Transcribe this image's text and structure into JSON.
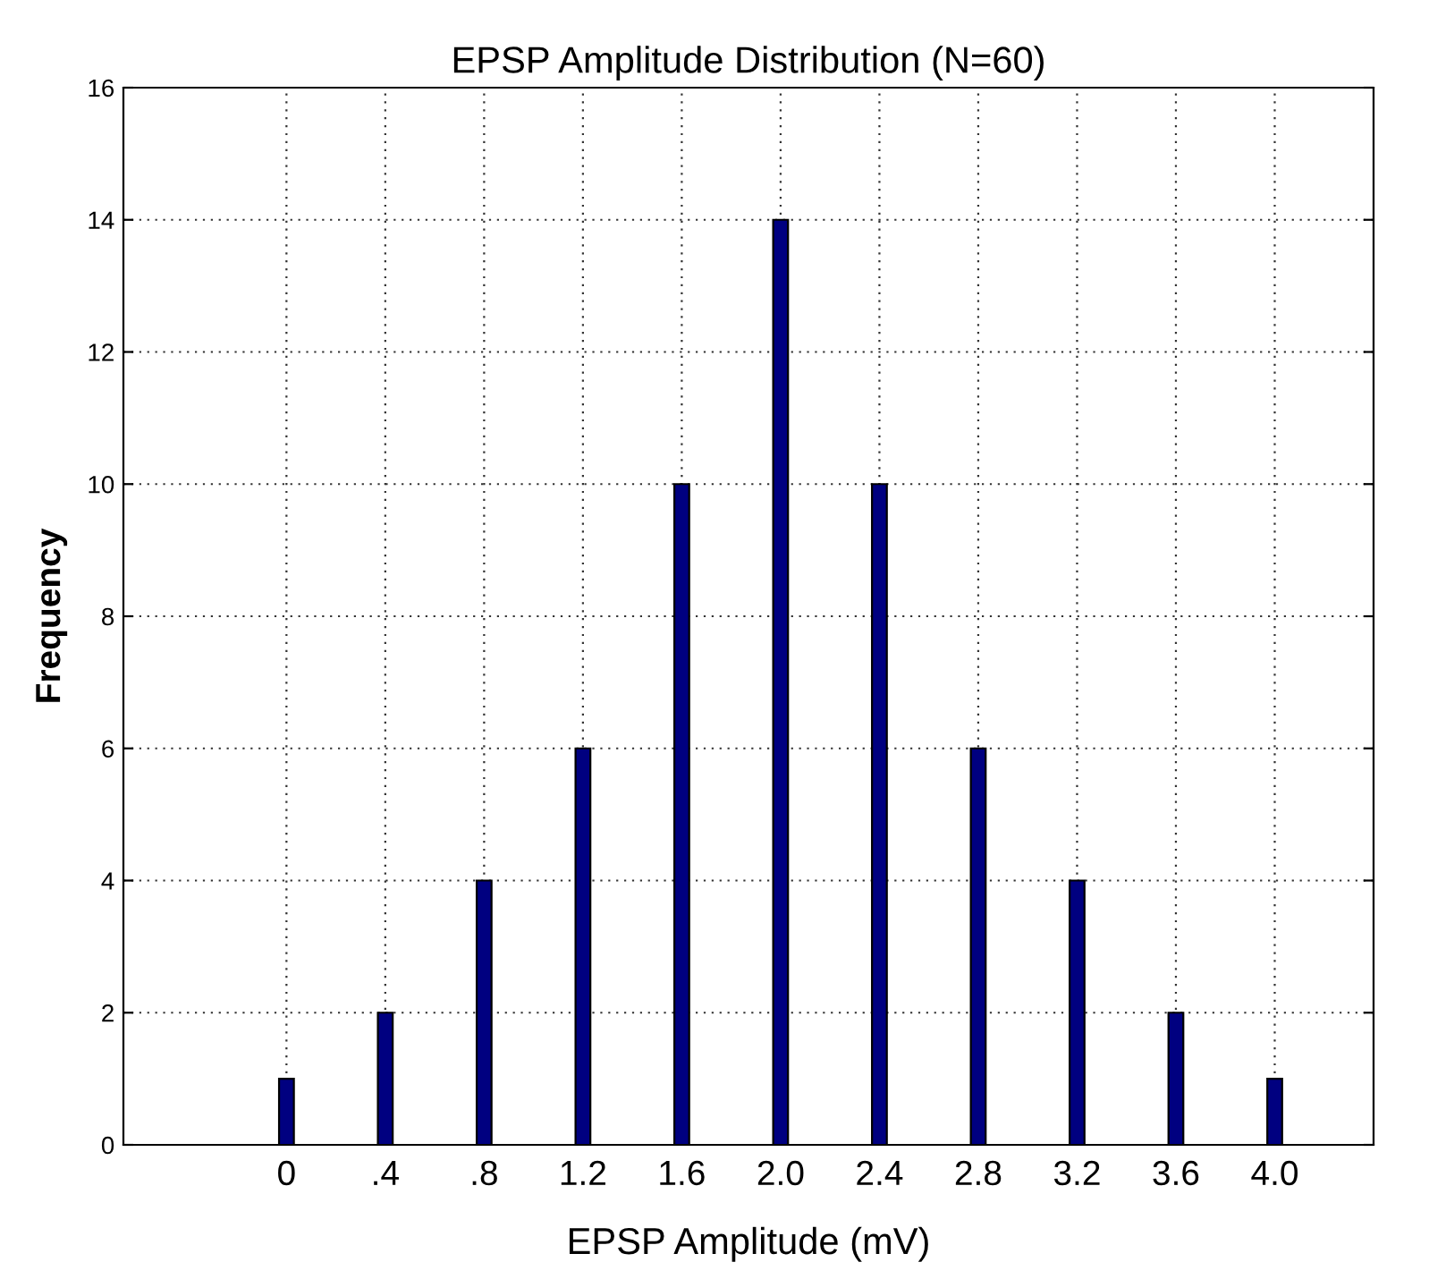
{
  "chart_data": {
    "type": "bar",
    "title": "EPSP Amplitude Distribution (N=60)",
    "xlabel": "EPSP Amplitude (mV)",
    "ylabel": "Frequency",
    "x": [
      0,
      0.4,
      0.8,
      1.2,
      1.6,
      2.0,
      2.4,
      2.8,
      3.2,
      3.6,
      4.0
    ],
    "values": [
      1,
      2,
      4,
      6,
      10,
      14,
      10,
      6,
      4,
      2,
      1
    ],
    "color": "#000080",
    "xlim": [
      -0.66,
      4.4
    ],
    "xticks": [
      0,
      {
        "value": 0.4,
        "label": ".4"
      },
      {
        "value": 0.8,
        "label": ".8"
      },
      1.2,
      1.6,
      {
        "value": 2.0,
        "label": "2.0"
      },
      2.4,
      2.8,
      3.2,
      3.6,
      {
        "value": 4.0,
        "label": "4.0"
      }
    ],
    "ylim": [
      0,
      16
    ],
    "yticks": [
      0,
      2,
      4,
      6,
      8,
      10,
      12,
      14,
      16
    ],
    "grid": true
  }
}
